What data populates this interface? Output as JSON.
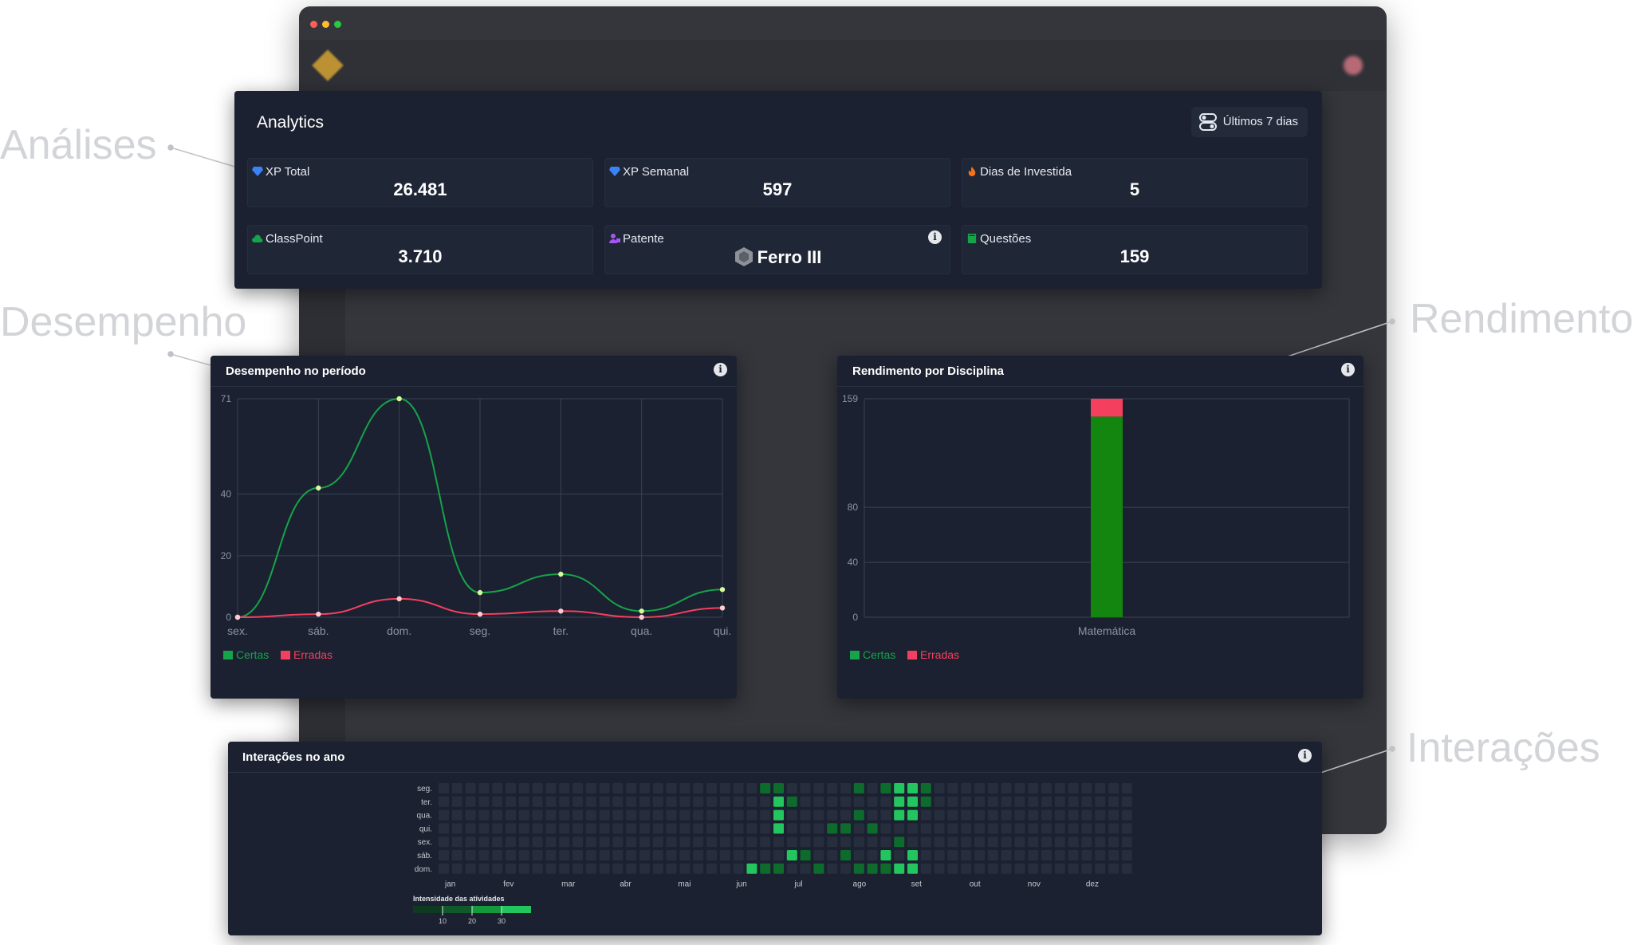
{
  "callouts": {
    "analises": "Análises",
    "desempenho": "Desempenho",
    "rendimento": "Rendimento",
    "interacoes": "Interações"
  },
  "analytics": {
    "title": "Analytics",
    "period_button": "Últimos 7 dias",
    "cards": [
      {
        "label": "XP Total",
        "value": "26.481",
        "icon": "diamond-icon",
        "color": "#3b82f6"
      },
      {
        "label": "XP Semanal",
        "value": "597",
        "icon": "diamond-icon",
        "color": "#3b82f6"
      },
      {
        "label": "Dias de Investida",
        "value": "5",
        "icon": "flame-icon",
        "color": "#f97316"
      },
      {
        "label": "ClassPoint",
        "value": "3.710",
        "icon": "cloud-icon",
        "color": "#16a34a"
      },
      {
        "label": "Patente",
        "value": "Ferro III",
        "icon": "user-badge-icon",
        "color": "#a855f7"
      },
      {
        "label": "Questões",
        "value": "159",
        "icon": "book-icon",
        "color": "#16a34a"
      }
    ]
  },
  "desempenho": {
    "title": "Desempenho no período"
  },
  "rendimento": {
    "title": "Rendimento por Disciplina"
  },
  "interacoes": {
    "title": "Interações no ano",
    "intensity_label": "Intensidade das atividades"
  },
  "legend": {
    "certas": "Certas",
    "erradas": "Erradas",
    "certas_color": "#16a34a",
    "erradas_color": "#f43f5e"
  },
  "chart_data": [
    {
      "type": "line",
      "title": "Desempenho no período",
      "categories": [
        "sex.",
        "sáb.",
        "dom.",
        "seg.",
        "ter.",
        "qua.",
        "qui."
      ],
      "y_ticks": [
        0,
        20,
        40,
        71
      ],
      "ylim": [
        0,
        71
      ],
      "series": [
        {
          "name": "Certas",
          "values": [
            0,
            42,
            71,
            8,
            14,
            2,
            9
          ],
          "color": "#16a34a"
        },
        {
          "name": "Erradas",
          "values": [
            0,
            1,
            6,
            1,
            2,
            0,
            3
          ],
          "color": "#f43f5e"
        }
      ],
      "legend": "bottom-left",
      "grid": true
    },
    {
      "type": "bar",
      "title": "Rendimento por Disciplina",
      "categories": [
        "Matemática"
      ],
      "y_ticks": [
        0,
        40,
        80,
        159
      ],
      "ylim": [
        0,
        159
      ],
      "stacked": true,
      "series": [
        {
          "name": "Certas",
          "values": [
            146
          ],
          "color": "#13860f"
        },
        {
          "name": "Erradas",
          "values": [
            13
          ],
          "color": "#f43f5e"
        }
      ],
      "legend": "bottom-left",
      "grid": true
    },
    {
      "type": "heatmap",
      "title": "Interações no ano",
      "rows": [
        "seg.",
        "ter.",
        "qua.",
        "qui.",
        "sex.",
        "sáb.",
        "dom."
      ],
      "months": [
        "jan",
        "fev",
        "mar",
        "abr",
        "mai",
        "jun",
        "jul",
        "ago",
        "set",
        "out",
        "nov",
        "dez"
      ],
      "scale_ticks": [
        10,
        20,
        30
      ],
      "weeks": 52,
      "active_cells": [
        {
          "week": 24,
          "day": 0,
          "level": 1
        },
        {
          "week": 25,
          "day": 0,
          "level": 1
        },
        {
          "week": 25,
          "day": 1,
          "level": 3
        },
        {
          "week": 25,
          "day": 2,
          "level": 3
        },
        {
          "week": 25,
          "day": 3,
          "level": 3
        },
        {
          "week": 23,
          "day": 6,
          "level": 3
        },
        {
          "week": 24,
          "day": 6,
          "level": 1
        },
        {
          "week": 25,
          "day": 6,
          "level": 1
        },
        {
          "week": 26,
          "day": 5,
          "level": 3
        },
        {
          "week": 26,
          "day": 1,
          "level": 1
        },
        {
          "week": 27,
          "day": 5,
          "level": 1
        },
        {
          "week": 28,
          "day": 6,
          "level": 1
        },
        {
          "week": 29,
          "day": 3,
          "level": 1
        },
        {
          "week": 30,
          "day": 3,
          "level": 1
        },
        {
          "week": 30,
          "day": 5,
          "level": 1
        },
        {
          "week": 31,
          "day": 2,
          "level": 1
        },
        {
          "week": 31,
          "day": 0,
          "level": 1
        },
        {
          "week": 31,
          "day": 6,
          "level": 1
        },
        {
          "week": 32,
          "day": 6,
          "level": 1
        },
        {
          "week": 33,
          "day": 0,
          "level": 1
        },
        {
          "week": 33,
          "day": 5,
          "level": 3
        },
        {
          "week": 33,
          "day": 6,
          "level": 1
        },
        {
          "week": 34,
          "day": 0,
          "level": 3
        },
        {
          "week": 34,
          "day": 1,
          "level": 3
        },
        {
          "week": 34,
          "day": 2,
          "level": 3
        },
        {
          "week": 34,
          "day": 6,
          "level": 3
        },
        {
          "week": 35,
          "day": 0,
          "level": 3
        },
        {
          "week": 35,
          "day": 1,
          "level": 3
        },
        {
          "week": 35,
          "day": 2,
          "level": 3
        },
        {
          "week": 35,
          "day": 5,
          "level": 3
        },
        {
          "week": 35,
          "day": 6,
          "level": 3
        },
        {
          "week": 36,
          "day": 0,
          "level": 1
        },
        {
          "week": 36,
          "day": 1,
          "level": 1
        },
        {
          "week": 34,
          "day": 4,
          "level": 1
        },
        {
          "week": 32,
          "day": 3,
          "level": 1
        }
      ]
    }
  ],
  "colors": {
    "panel": "#1b2130",
    "card": "#1f2636",
    "grid": "#3a4254",
    "text_muted": "#8b93a3"
  }
}
